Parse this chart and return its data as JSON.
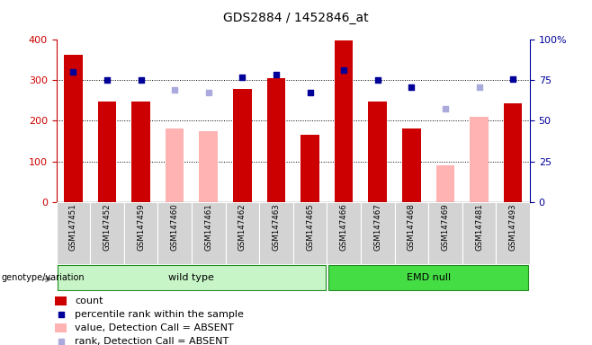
{
  "title": "GDS2884 / 1452846_at",
  "samples": [
    "GSM147451",
    "GSM147452",
    "GSM147459",
    "GSM147460",
    "GSM147461",
    "GSM147462",
    "GSM147463",
    "GSM147465",
    "GSM147466",
    "GSM147467",
    "GSM147468",
    "GSM147469",
    "GSM147481",
    "GSM147493"
  ],
  "count_values": [
    362,
    247,
    247,
    null,
    null,
    278,
    306,
    165,
    399,
    247,
    182,
    null,
    null,
    243
  ],
  "absent_value_values": [
    null,
    null,
    null,
    182,
    175,
    null,
    null,
    null,
    null,
    null,
    null,
    90,
    210,
    null
  ],
  "percentile_rank_left": [
    320,
    300,
    300,
    null,
    null,
    308,
    315,
    270,
    325,
    300,
    283,
    null,
    null,
    303
  ],
  "absent_rank_left": [
    null,
    null,
    null,
    277,
    270,
    null,
    null,
    null,
    null,
    null,
    null,
    230,
    283,
    null
  ],
  "dark_red": "#cc0000",
  "light_pink": "#ffb3b3",
  "dark_blue": "#000099",
  "light_blue": "#aaaadd",
  "bg_gray": "#d3d3d3",
  "bg_wildtype": "#c8f5c8",
  "bg_emdnull": "#44dd44",
  "title_fontsize": 10,
  "axis_fontsize": 8,
  "label_fontsize": 8,
  "legend_fontsize": 8
}
